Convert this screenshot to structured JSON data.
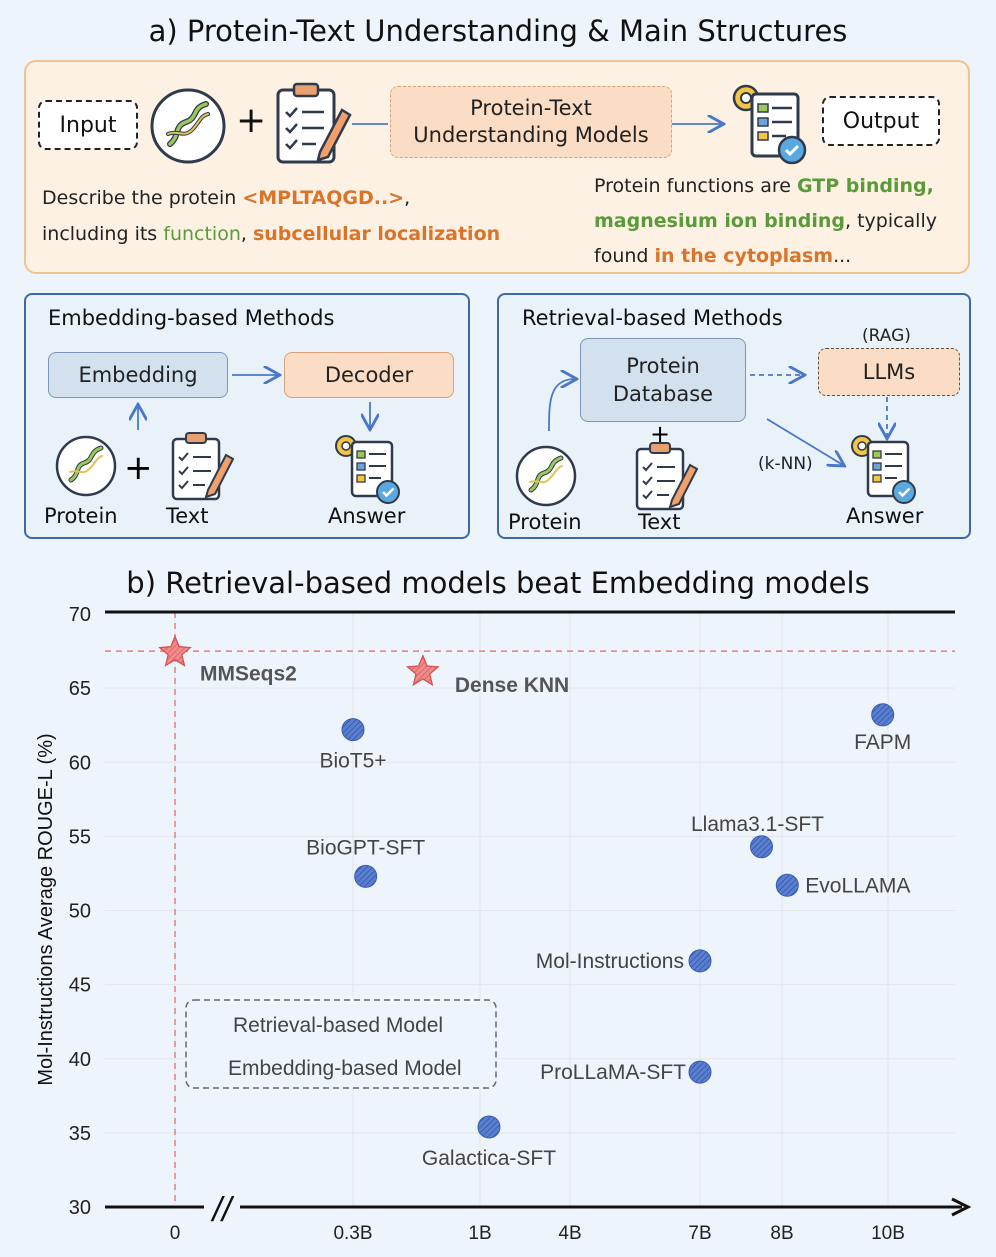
{
  "section_a": {
    "title": "a) Protein-Text Understanding & Main Structures",
    "input_label": "Input",
    "model_label": "Protein-Text Understanding Models",
    "output_label": "Output",
    "plus": "+",
    "prompt_line1_prefix": "Describe the protein ",
    "prompt_sequence": "<MPLTAQGD..>",
    "prompt_line1_suffix": ",",
    "prompt_line2_prefix": "including its ",
    "prompt_function": "function",
    "prompt_sep": ", ",
    "prompt_localization": "subcellular localization",
    "answer_line1_prefix": "Protein functions are ",
    "answer_gtp": "GTP binding,",
    "answer_magnesium": "magnesium ion binding",
    "answer_line2_suffix": ", typically",
    "answer_line3_prefix": "found ",
    "answer_location": "in the cytoplasm",
    "answer_ellipsis": "..."
  },
  "embedding_panel": {
    "title": "Embedding-based Methods",
    "embedding_label": "Embedding",
    "decoder_label": "Decoder",
    "protein_label": "Protein",
    "text_label": "Text",
    "answer_label": "Answer",
    "plus": "+"
  },
  "retrieval_panel": {
    "title": "Retrieval-based Methods",
    "database_label": "Protein Database",
    "rag_label": "(RAG)",
    "llms_label": "LLMs",
    "knn_label": "(k-NN)",
    "protein_label": "Protein",
    "text_label": "Text",
    "answer_label": "Answer",
    "plus": "+"
  },
  "section_b": {
    "title": "b) Retrieval-based models beat Embedding models"
  },
  "colors": {
    "star": "#e06a6a",
    "dot": "#4a6cc0",
    "panel_orange": "#fdf1e4",
    "panel_blue": "#e9f1f9"
  },
  "chart_data": {
    "type": "scatter",
    "ylabel": "Mol-Instructions Average ROUGE-L (%)",
    "ylim": [
      30,
      70
    ],
    "yticks": [
      30,
      35,
      40,
      45,
      50,
      55,
      60,
      65,
      70
    ],
    "xticks": [
      "0",
      "0.3B",
      "1B",
      "4B",
      "7B",
      "8B",
      "10B"
    ],
    "axis_break": "//",
    "reference_line_y": 67.5,
    "retrieval_points": [
      {
        "name": "MMSeqs2",
        "x_tick": 0,
        "x_offset": 0.0,
        "y": 67.4
      },
      {
        "name": "Dense KNN",
        "x_tick": 1.55,
        "x_offset": 0.0,
        "y": 66.1
      }
    ],
    "embedding_points": [
      {
        "name": "BioT5+",
        "x_tick": 1.0,
        "y": 62.2
      },
      {
        "name": "BioGPT-SFT",
        "x_tick": 1.1,
        "y": 52.3
      },
      {
        "name": "Galactica-SFT",
        "x_tick": 2.1,
        "y": 35.4
      },
      {
        "name": "Mol-Instructions",
        "x_tick": 4.0,
        "y": 46.6
      },
      {
        "name": "ProLLaMA-SFT",
        "x_tick": 4.0,
        "y": 39.1
      },
      {
        "name": "Llama3.1-SFT",
        "x_tick": 4.75,
        "y": 54.3
      },
      {
        "name": "EvoLLAMA",
        "x_tick": 5.05,
        "y": 51.7
      },
      {
        "name": "FAPM",
        "x_tick": 5.95,
        "y": 63.2
      }
    ],
    "legend": {
      "retrieval": "Retrieval-based Model",
      "embedding": "Embedding-based Model"
    }
  }
}
